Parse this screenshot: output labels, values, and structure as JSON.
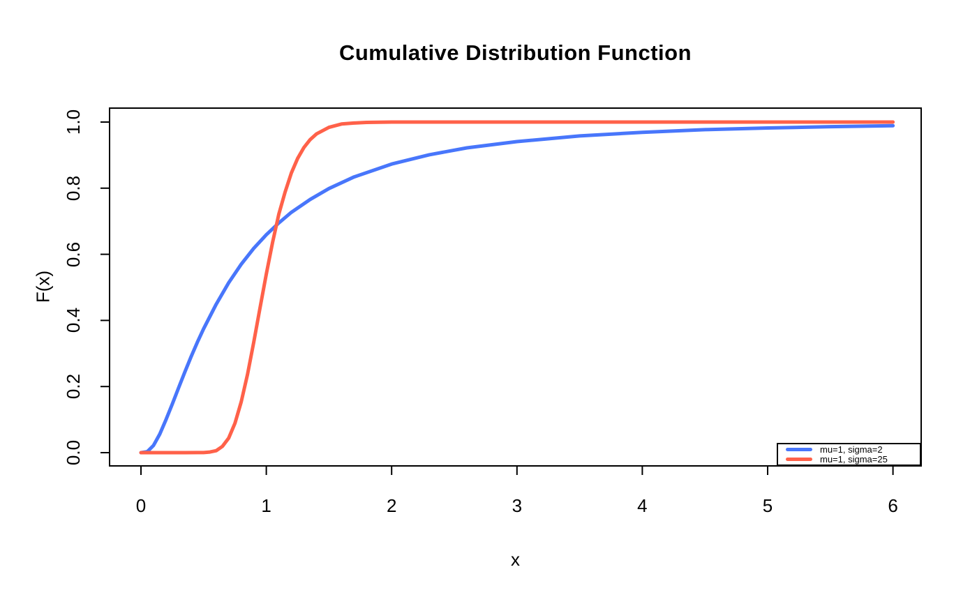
{
  "chart_data": {
    "type": "line",
    "title": "Cumulative Distribution Function",
    "xlabel": "x",
    "ylabel": "F(x)",
    "xlim": [
      0,
      6
    ],
    "ylim": [
      0.0,
      1.0
    ],
    "x_ticks": [
      0,
      1,
      2,
      3,
      4,
      5,
      6
    ],
    "x_tick_labels": [
      "0",
      "1",
      "2",
      "3",
      "4",
      "5",
      "6"
    ],
    "y_ticks": [
      0.0,
      0.2,
      0.4,
      0.6,
      0.8,
      1.0
    ],
    "y_tick_labels": [
      "0.0",
      "0.2",
      "0.4",
      "0.6",
      "0.8",
      "1.0"
    ],
    "grid": false,
    "legend_position": "bottom-right",
    "axis_color": "#000000",
    "background_color": "#ffffff",
    "series": [
      {
        "name": "mu=1, sigma=2",
        "color": "#4876FB",
        "points": [
          [
            0,
            0
          ],
          [
            0.05,
            0.003
          ],
          [
            0.1,
            0.022
          ],
          [
            0.15,
            0.056
          ],
          [
            0.2,
            0.1
          ],
          [
            0.25,
            0.147
          ],
          [
            0.3,
            0.196
          ],
          [
            0.35,
            0.244
          ],
          [
            0.4,
            0.29
          ],
          [
            0.45,
            0.334
          ],
          [
            0.5,
            0.375
          ],
          [
            0.6,
            0.449
          ],
          [
            0.7,
            0.514
          ],
          [
            0.8,
            0.57
          ],
          [
            0.9,
            0.618
          ],
          [
            1,
            0.659
          ],
          [
            1.1,
            0.695
          ],
          [
            1.2,
            0.727
          ],
          [
            1.35,
            0.766
          ],
          [
            1.5,
            0.799
          ],
          [
            1.7,
            0.834
          ],
          [
            2,
            0.873
          ],
          [
            2.3,
            0.901
          ],
          [
            2.6,
            0.922
          ],
          [
            3,
            0.941
          ],
          [
            3.5,
            0.958
          ],
          [
            4,
            0.969
          ],
          [
            4.5,
            0.977
          ],
          [
            5,
            0.982
          ],
          [
            5.5,
            0.986
          ],
          [
            6,
            0.989
          ]
        ]
      },
      {
        "name": "mu=1, sigma=25",
        "color": "#FF6149",
        "points": [
          [
            0,
            0
          ],
          [
            0.2,
            0
          ],
          [
            0.35,
            0
          ],
          [
            0.45,
            0.0002
          ],
          [
            0.5,
            0.0003
          ],
          [
            0.55,
            0.002
          ],
          [
            0.6,
            0.006
          ],
          [
            0.65,
            0.019
          ],
          [
            0.7,
            0.044
          ],
          [
            0.75,
            0.089
          ],
          [
            0.8,
            0.154
          ],
          [
            0.85,
            0.237
          ],
          [
            0.9,
            0.334
          ],
          [
            0.95,
            0.438
          ],
          [
            1,
            0.54
          ],
          [
            1.05,
            0.636
          ],
          [
            1.1,
            0.722
          ],
          [
            1.15,
            0.788
          ],
          [
            1.2,
            0.846
          ],
          [
            1.25,
            0.89
          ],
          [
            1.3,
            0.923
          ],
          [
            1.35,
            0.947
          ],
          [
            1.4,
            0.964
          ],
          [
            1.5,
            0.984
          ],
          [
            1.6,
            0.994
          ],
          [
            1.7,
            0.997
          ],
          [
            1.8,
            0.999
          ],
          [
            2,
            1
          ],
          [
            2.5,
            1
          ],
          [
            3,
            1
          ],
          [
            4,
            1
          ],
          [
            5,
            1
          ],
          [
            6,
            1
          ]
        ]
      }
    ]
  }
}
